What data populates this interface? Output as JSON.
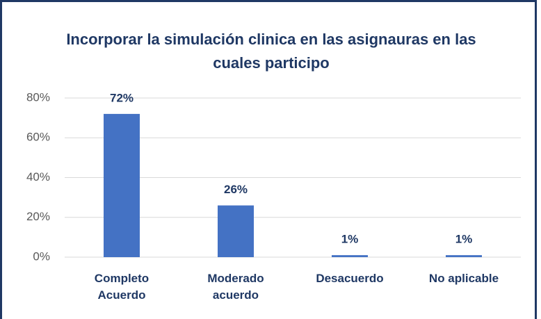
{
  "chart_data": {
    "type": "bar",
    "title": "Incorporar  la simulación clinica en las asignauras en las cuales participo",
    "categories": [
      "Completo Acuerdo",
      "Moderado acuerdo",
      "Desacuerdo",
      "No aplicable"
    ],
    "values": [
      72,
      26,
      1,
      1
    ],
    "value_labels": [
      "72%",
      "26%",
      "1%",
      "1%"
    ],
    "color": "#4472c4",
    "ylim": [
      0,
      80
    ],
    "yticks": [
      {
        "value": 0,
        "label": "0%"
      },
      {
        "value": 20,
        "label": "20%"
      },
      {
        "value": 40,
        "label": "40%"
      },
      {
        "value": 60,
        "label": "60%"
      },
      {
        "value": 80,
        "label": "80%"
      }
    ],
    "grid": true
  }
}
